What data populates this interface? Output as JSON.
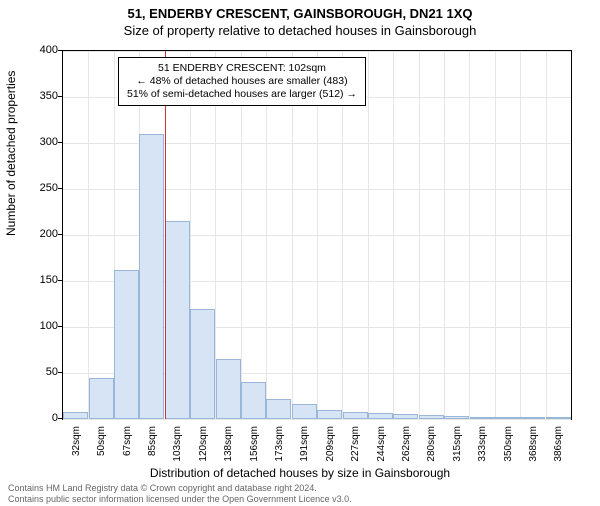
{
  "title_line1": "51, ENDERBY CRESCENT, GAINSBOROUGH, DN21 1XQ",
  "title_line2": "Size of property relative to detached houses in Gainsborough",
  "ylabel": "Number of detached properties",
  "xlabel": "Distribution of detached houses by size in Gainsborough",
  "footer_line1": "Contains HM Land Registry data © Crown copyright and database right 2024.",
  "footer_line2": "Contains public sector information licensed under the Open Government Licence v3.0.",
  "annotation": {
    "line1": "51 ENDERBY CRESCENT: 102sqm",
    "line2": "← 48% of detached houses are smaller (483)",
    "line3": "51% of semi-detached houses are larger (512) →"
  },
  "chart": {
    "type": "histogram",
    "ylim": [
      0,
      400
    ],
    "yticks": [
      0,
      50,
      100,
      150,
      200,
      250,
      300,
      350,
      400
    ],
    "xtick_labels": [
      "32sqm",
      "50sqm",
      "67sqm",
      "85sqm",
      "103sqm",
      "120sqm",
      "138sqm",
      "156sqm",
      "173sqm",
      "191sqm",
      "209sqm",
      "227sqm",
      "244sqm",
      "262sqm",
      "280sqm",
      "315sqm",
      "333sqm",
      "350sqm",
      "368sqm",
      "386sqm"
    ],
    "bars": [
      8,
      45,
      162,
      310,
      215,
      120,
      65,
      40,
      22,
      16,
      10,
      8,
      6,
      5,
      4,
      3,
      2,
      2,
      2,
      1
    ],
    "marker_index_after": 4,
    "bar_fill": "#d6e4f5",
    "bar_stroke": "#9ab6d9",
    "grid_color": "#e6e6e6",
    "marker_color": "#cc3333",
    "background": "#ffffff",
    "title_fontsize": 13,
    "label_fontsize": 12,
    "tick_fontsize": 11,
    "annot_fontsize": 10.5
  }
}
